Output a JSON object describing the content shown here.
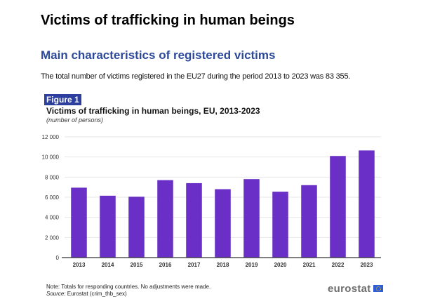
{
  "page": {
    "main_title": "Victims of trafficking in human beings",
    "sub_title": "Main characteristics of registered victims",
    "intro": "The total number of victims registered in the EU27 during the period 2013 to 2023 was 83 355.",
    "figure_label": "Figure 1",
    "note": "Note: Totals for responding countries. No adjustments were made.",
    "source_label": "Source:",
    "source_text": " Eurostat (crim_thb_sex)",
    "logo_text": "eurostat"
  },
  "colors": {
    "bar": "#6a2fc6",
    "grid": "#e6e6e6",
    "axis": "#333333",
    "subtitle": "#2e4a9a",
    "badge": "#2c3e9e"
  },
  "chart_data": {
    "type": "bar",
    "title": "Victims of trafficking in human beings, EU, 2013-2023",
    "subtitle": "(number of persons)",
    "xlabel": "",
    "ylabel": "",
    "categories": [
      "2013",
      "2014",
      "2015",
      "2016",
      "2017",
      "2018",
      "2019",
      "2020",
      "2021",
      "2022",
      "2023"
    ],
    "values": [
      6950,
      6150,
      6050,
      7700,
      7400,
      6800,
      7800,
      6550,
      7200,
      10100,
      10650
    ],
    "ylim": [
      0,
      12000
    ],
    "yticks": [
      0,
      2000,
      4000,
      6000,
      8000,
      10000,
      12000
    ],
    "ytick_labels": [
      "0",
      "2 000",
      "4 000",
      "6 000",
      "8 000",
      "10 000",
      "12 000"
    ],
    "grid": true,
    "legend": "none"
  }
}
